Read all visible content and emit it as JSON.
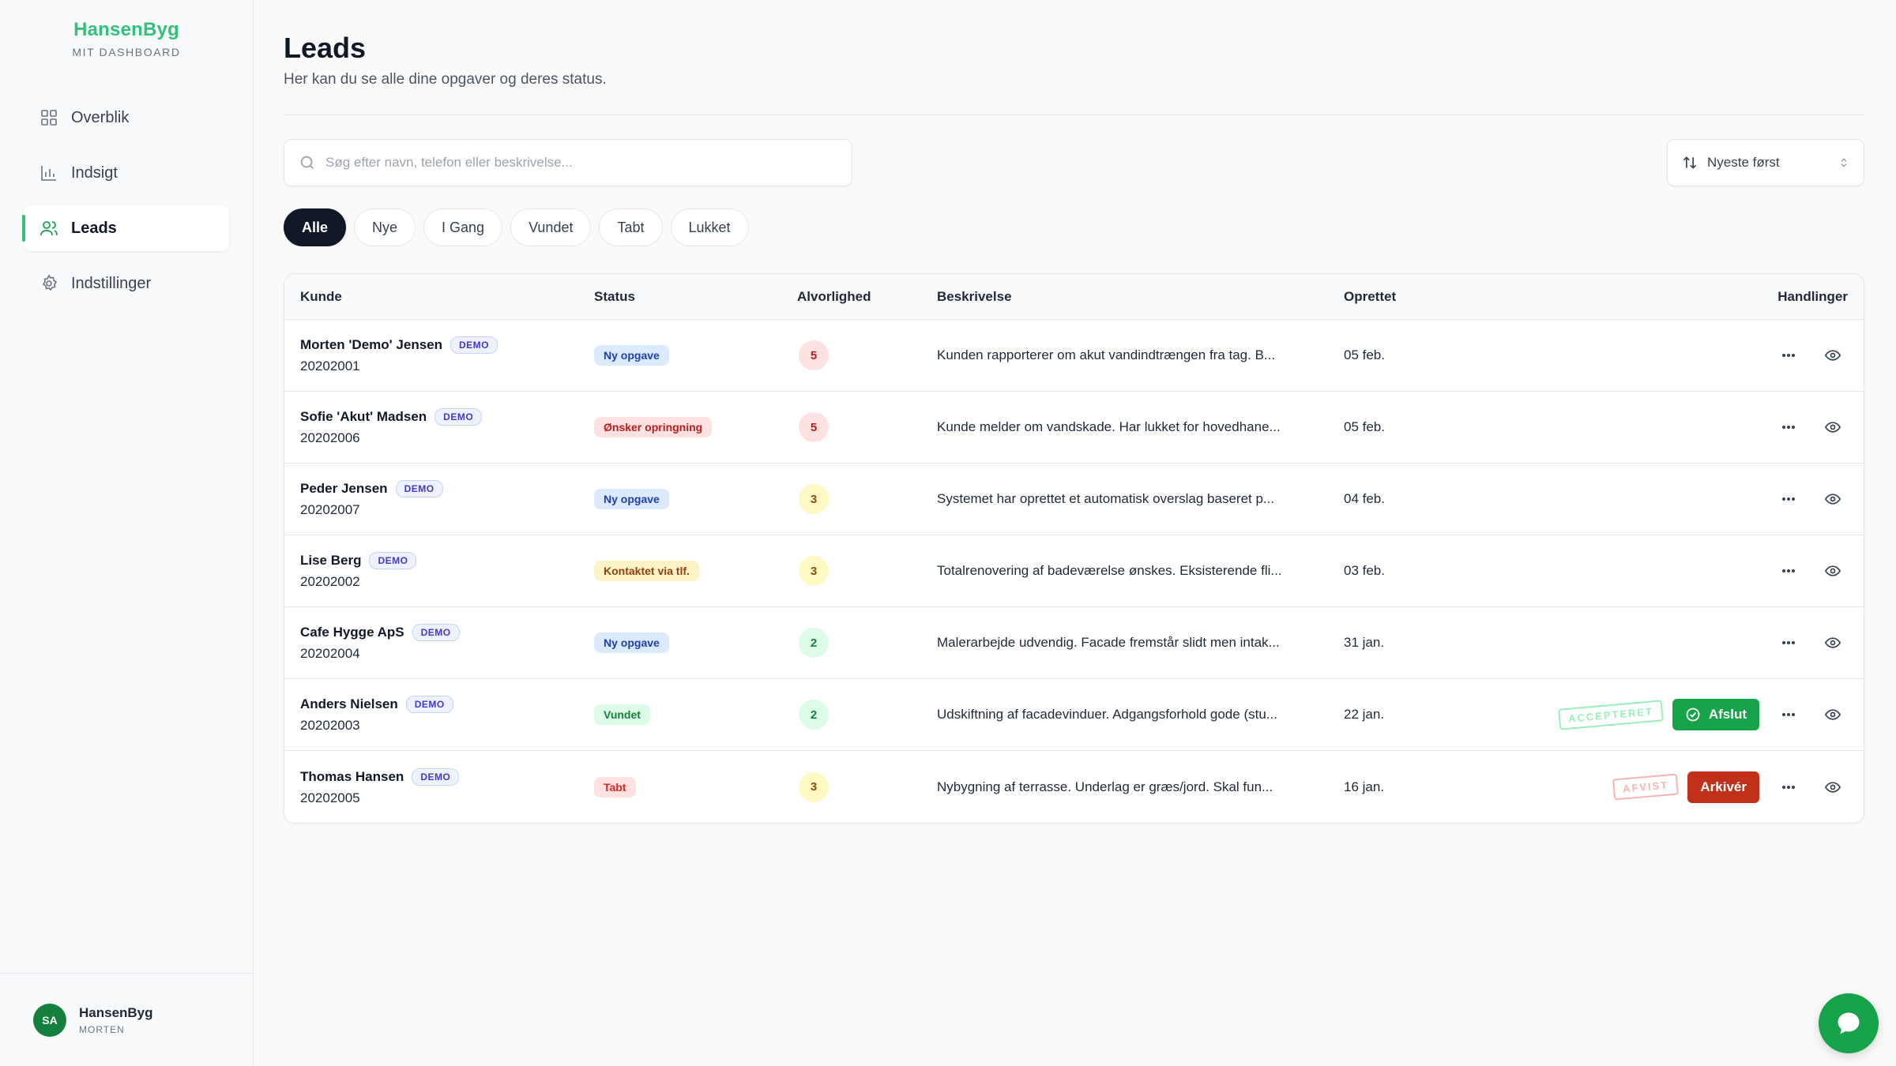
{
  "brand": {
    "name": "HansenByg",
    "subtitle": "MIT DASHBOARD"
  },
  "sidebar": {
    "items": [
      {
        "label": "Overblik",
        "icon": "grid-icon"
      },
      {
        "label": "Indsigt",
        "icon": "bar-chart-icon"
      },
      {
        "label": "Leads",
        "icon": "users-icon",
        "active": true
      },
      {
        "label": "Indstillinger",
        "icon": "gear-icon"
      }
    ]
  },
  "user": {
    "initials": "SA",
    "name": "HansenByg",
    "role": "MORTEN"
  },
  "header": {
    "title": "Leads",
    "subtitle": "Her kan du se alle dine opgaver og deres status."
  },
  "search": {
    "placeholder": "Søg efter navn, telefon eller beskrivelse...",
    "value": ""
  },
  "sort": {
    "selected": "Nyeste først"
  },
  "filters": [
    "Alle",
    "Nye",
    "I Gang",
    "Vundet",
    "Tabt",
    "Lukket"
  ],
  "table": {
    "columns": {
      "kunde": "Kunde",
      "status": "Status",
      "alvorlighed": "Alvorlighed",
      "beskrivelse": "Beskrivelse",
      "oprettet": "Oprettet",
      "handlinger": "Handlinger"
    },
    "demo_label": "DEMO",
    "rows": [
      {
        "name": "Morten 'Demo' Jensen",
        "id": "20202001",
        "status": "Ny opgave",
        "status_color": "#dbeafe",
        "severity": "5",
        "description": "Kunden rapporterer om akut vandindtrængen fra tag. B...",
        "created": "05 feb."
      },
      {
        "name": "Sofie 'Akut' Madsen",
        "id": "20202006",
        "status": "Ønsker opringning",
        "status_color": "#fee2e2",
        "severity": "5",
        "description": "Kunde melder om vandskade. Har lukket for hovedhane...",
        "created": "05 feb."
      },
      {
        "name": "Peder Jensen",
        "id": "20202007",
        "status": "Ny opgave",
        "status_color": "#dbeafe",
        "severity": "3",
        "description": "Systemet har oprettet et automatisk overslag baseret p...",
        "created": "04 feb."
      },
      {
        "name": "Lise Berg",
        "id": "20202002",
        "status": "Kontaktet via tlf.",
        "status_color": "#fef3c7",
        "severity": "3",
        "description": "Totalrenovering af badeværelse ønskes. Eksisterende fli...",
        "created": "03 feb."
      },
      {
        "name": "Cafe Hygge ApS",
        "id": "20202004",
        "status": "Ny opgave",
        "status_color": "#dbeafe",
        "severity": "2",
        "description": "Malerarbejde udvendig. Facade fremstår slidt men intak...",
        "created": "31 jan."
      },
      {
        "name": "Anders Nielsen",
        "id": "20202003",
        "status": "Vundet",
        "status_color": "#dcfce7",
        "severity": "2",
        "description": "Udskiftning af facadevinduer. Adgangsforhold gode (stu...",
        "created": "22 jan.",
        "stamp": "ACCEPTERET",
        "action": "Afslut"
      },
      {
        "name": "Thomas Hansen",
        "id": "20202005",
        "status": "Tabt",
        "status_color": "#fee2e2",
        "severity": "3",
        "description": "Nybygning af terrasse. Underlag er græs/jord. Skal fun...",
        "created": "16 jan.",
        "stamp": "AFVIST",
        "action": "Arkivér"
      }
    ]
  },
  "colors": {
    "accent": "#34c17b",
    "primary_dark": "#111827",
    "success": "#16a34a",
    "danger": "#c1301a"
  }
}
